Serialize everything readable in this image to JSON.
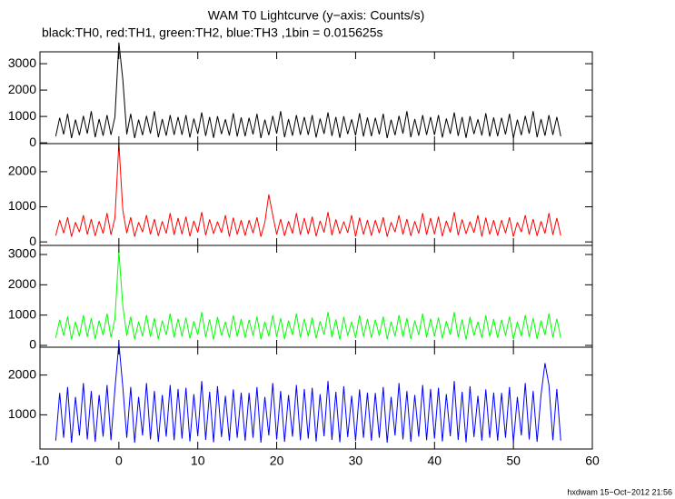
{
  "title": "WAM T0 Lightcurve (y−axis: Counts/s)",
  "subtitle": "black:TH0, red:TH1, green:TH2, blue:TH3 ,1bin = 0.015625s",
  "footer": "hxdwam 15−Oct−2012 21:56",
  "chart_data": {
    "type": "line",
    "xlim": [
      -10,
      60
    ],
    "xticks": [
      -10,
      0,
      10,
      20,
      30,
      40,
      50,
      60
    ],
    "x": [
      -8,
      -7.5,
      -7,
      -6.5,
      -6,
      -5.5,
      -5,
      -4.5,
      -4,
      -3.5,
      -3,
      -2.5,
      -2,
      -1.5,
      -1,
      -0.5,
      0,
      0.5,
      1,
      1.5,
      2,
      2.5,
      3,
      3.5,
      4,
      4.5,
      5,
      5.5,
      6,
      6.5,
      7,
      7.5,
      8,
      8.5,
      9,
      9.5,
      10,
      10.5,
      11,
      11.5,
      12,
      12.5,
      13,
      13.5,
      14,
      14.5,
      15,
      15.5,
      16,
      16.5,
      17,
      17.5,
      18,
      18.5,
      19,
      19.5,
      20,
      20.5,
      21,
      21.5,
      22,
      22.5,
      23,
      23.5,
      24,
      24.5,
      25,
      25.5,
      26,
      26.5,
      27,
      27.5,
      28,
      28.5,
      29,
      29.5,
      30,
      30.5,
      31,
      31.5,
      32,
      32.5,
      33,
      33.5,
      34,
      34.5,
      35,
      35.5,
      36,
      36.5,
      37,
      37.5,
      38,
      38.5,
      39,
      39.5,
      40,
      40.5,
      41,
      41.5,
      42,
      42.5,
      43,
      43.5,
      44,
      44.5,
      45,
      45.5,
      46,
      46.5,
      47,
      47.5,
      48,
      48.5,
      49,
      49.5,
      50,
      50.5,
      51,
      51.5,
      52,
      52.5,
      53,
      53.5,
      54,
      54.5,
      55,
      55.5,
      56
    ],
    "series": [
      {
        "color": "#000000",
        "ylim": [
          -30,
          3450
        ],
        "yticks": [
          0,
          1000,
          2000,
          3000
        ],
        "values": [
          250,
          950,
          320,
          1100,
          180,
          880,
          290,
          1020,
          350,
          1200,
          210,
          900,
          270,
          1050,
          300,
          980,
          3800,
          2400,
          320,
          1100,
          180,
          880,
          290,
          1020,
          350,
          1200,
          210,
          900,
          270,
          1050,
          300,
          980,
          300,
          1050,
          200,
          920,
          340,
          1150,
          260,
          980,
          190,
          1010,
          330,
          890,
          280,
          1120,
          240,
          960,
          250,
          950,
          320,
          1100,
          180,
          880,
          290,
          1020,
          350,
          1200,
          210,
          900,
          270,
          1050,
          300,
          980,
          300,
          1050,
          200,
          920,
          340,
          1150,
          260,
          980,
          190,
          1010,
          330,
          890,
          280,
          1120,
          240,
          960,
          250,
          950,
          320,
          1100,
          180,
          880,
          290,
          1020,
          350,
          1200,
          210,
          900,
          270,
          1050,
          300,
          980,
          300,
          1050,
          200,
          920,
          340,
          1150,
          260,
          980,
          190,
          1010,
          330,
          890,
          280,
          1120,
          240,
          960,
          250,
          950,
          320,
          1100,
          180,
          880,
          290,
          1020,
          350,
          1200,
          210,
          900,
          270,
          1050,
          300,
          980,
          250
        ]
      },
      {
        "color": "#ff0000",
        "ylim": [
          -100,
          2800
        ],
        "yticks": [
          0,
          1000,
          2000
        ],
        "values": [
          180,
          620,
          250,
          700,
          150,
          560,
          280,
          760,
          210,
          650,
          170,
          590,
          240,
          820,
          200,
          680,
          2800,
          900,
          250,
          700,
          150,
          560,
          280,
          760,
          210,
          650,
          170,
          590,
          240,
          820,
          200,
          680,
          220,
          720,
          160,
          600,
          270,
          850,
          190,
          640,
          230,
          580,
          260,
          760,
          150,
          690,
          210,
          620,
          180,
          620,
          250,
          700,
          150,
          560,
          1350,
          760,
          210,
          650,
          170,
          590,
          240,
          820,
          200,
          680,
          220,
          720,
          160,
          600,
          270,
          850,
          190,
          640,
          230,
          580,
          260,
          760,
          150,
          690,
          210,
          620,
          180,
          620,
          250,
          700,
          150,
          560,
          280,
          760,
          210,
          650,
          170,
          590,
          240,
          820,
          200,
          680,
          220,
          720,
          160,
          600,
          270,
          850,
          190,
          640,
          230,
          580,
          260,
          760,
          150,
          690,
          210,
          620,
          180,
          620,
          250,
          700,
          150,
          560,
          280,
          760,
          210,
          650,
          170,
          590,
          240,
          820,
          200,
          680,
          180
        ]
      },
      {
        "color": "#00ff00",
        "ylim": [
          -60,
          3300
        ],
        "yticks": [
          0,
          1000,
          2000,
          3000
        ],
        "values": [
          250,
          850,
          320,
          950,
          200,
          780,
          300,
          1000,
          280,
          900,
          210,
          820,
          340,
          1050,
          260,
          880,
          3100,
          1300,
          320,
          950,
          200,
          780,
          300,
          1000,
          280,
          900,
          210,
          820,
          340,
          1050,
          260,
          880,
          300,
          920,
          230,
          800,
          350,
          1100,
          270,
          860,
          190,
          940,
          320,
          780,
          250,
          990,
          290,
          870,
          250,
          850,
          320,
          950,
          200,
          780,
          300,
          1000,
          280,
          900,
          210,
          820,
          340,
          1050,
          260,
          880,
          300,
          920,
          230,
          800,
          350,
          1100,
          270,
          860,
          190,
          940,
          320,
          780,
          250,
          990,
          290,
          870,
          250,
          850,
          320,
          950,
          200,
          780,
          300,
          1000,
          280,
          900,
          210,
          820,
          340,
          1050,
          260,
          880,
          300,
          920,
          230,
          800,
          350,
          1100,
          270,
          860,
          190,
          940,
          320,
          780,
          250,
          990,
          290,
          870,
          250,
          850,
          320,
          950,
          200,
          780,
          300,
          1000,
          280,
          900,
          210,
          820,
          340,
          1050,
          260,
          880,
          250
        ]
      },
      {
        "color": "#0000ff",
        "ylim": [
          140,
          2700
        ],
        "yticks": [
          1000,
          2000
        ],
        "values": [
          350,
          1550,
          420,
          1700,
          300,
          1450,
          480,
          1800,
          380,
          1600,
          320,
          1500,
          450,
          1750,
          360,
          1650,
          2800,
          1700,
          420,
          1700,
          300,
          1450,
          480,
          1800,
          380,
          1600,
          320,
          1500,
          450,
          1750,
          360,
          1650,
          400,
          1680,
          330,
          1520,
          460,
          1850,
          370,
          1580,
          310,
          1720,
          440,
          1480,
          350,
          1640,
          420,
          1560,
          350,
          1550,
          420,
          1700,
          300,
          1450,
          480,
          1800,
          380,
          1600,
          320,
          1500,
          450,
          1750,
          360,
          1650,
          400,
          1680,
          330,
          1520,
          460,
          1850,
          370,
          1580,
          310,
          1720,
          440,
          1480,
          350,
          1640,
          420,
          1560,
          350,
          1550,
          420,
          1700,
          300,
          1450,
          480,
          1800,
          380,
          1600,
          320,
          1500,
          450,
          1750,
          360,
          1650,
          400,
          1680,
          330,
          1520,
          460,
          1850,
          370,
          1580,
          310,
          1720,
          440,
          1480,
          350,
          1640,
          420,
          1560,
          350,
          1550,
          420,
          1700,
          300,
          1450,
          480,
          1800,
          380,
          1600,
          320,
          1500,
          2300,
          1750,
          360,
          1650,
          350
        ]
      }
    ]
  }
}
